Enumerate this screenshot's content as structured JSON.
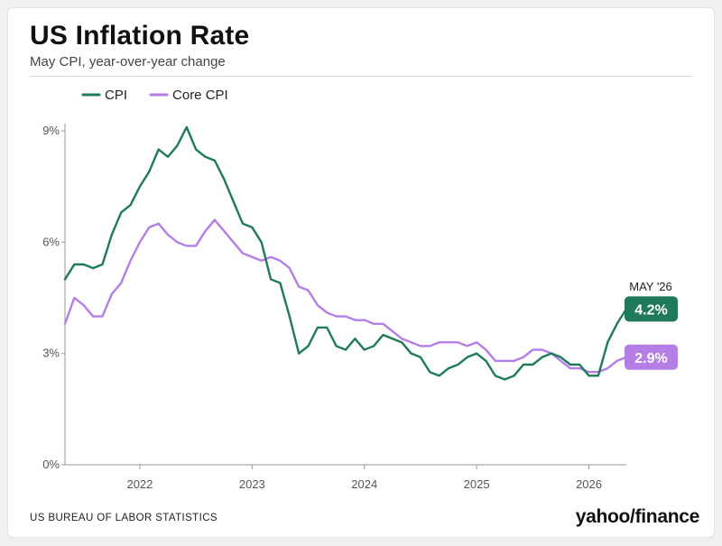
{
  "header": {
    "title": "US Inflation Rate",
    "subtitle": "May CPI, year-over-year change"
  },
  "footer": {
    "source": "US BUREAU OF LABOR STATISTICS",
    "brand": "yahoo/finance"
  },
  "colors": {
    "cpi": "#1f7a5a",
    "core_cpi": "#b57ee6",
    "axis": "#9a9a9a",
    "grid": "#dddddd"
  },
  "chart_data": {
    "type": "line",
    "title": "US Inflation Rate",
    "subtitle": "May CPI, year-over-year change",
    "xlabel": "",
    "ylabel": "",
    "y_unit": "%",
    "ylim": [
      0,
      9
    ],
    "yticks": [
      0,
      3,
      6,
      9
    ],
    "ytick_labels": [
      "0%",
      "3%",
      "6%",
      "9%"
    ],
    "xticks": [
      "2022",
      "2023",
      "2024",
      "2025",
      "2026"
    ],
    "xlim": [
      "2021-05",
      "2026-05"
    ],
    "grid": false,
    "legend_position": "top-left",
    "period_label": "MAY '26",
    "series": [
      {
        "name": "CPI",
        "color": "#1f7a5a",
        "end_label": "4.2%",
        "points": [
          [
            "2021-05",
            5.0
          ],
          [
            "2021-06",
            5.4
          ],
          [
            "2021-07",
            5.4
          ],
          [
            "2021-08",
            5.3
          ],
          [
            "2021-09",
            5.4
          ],
          [
            "2021-10",
            6.2
          ],
          [
            "2021-11",
            6.8
          ],
          [
            "2021-12",
            7.0
          ],
          [
            "2022-01",
            7.5
          ],
          [
            "2022-02",
            7.9
          ],
          [
            "2022-03",
            8.5
          ],
          [
            "2022-04",
            8.3
          ],
          [
            "2022-05",
            8.6
          ],
          [
            "2022-06",
            9.1
          ],
          [
            "2022-07",
            8.5
          ],
          [
            "2022-08",
            8.3
          ],
          [
            "2022-09",
            8.2
          ],
          [
            "2022-10",
            7.7
          ],
          [
            "2022-11",
            7.1
          ],
          [
            "2022-12",
            6.5
          ],
          [
            "2023-01",
            6.4
          ],
          [
            "2023-02",
            6.0
          ],
          [
            "2023-03",
            5.0
          ],
          [
            "2023-04",
            4.9
          ],
          [
            "2023-05",
            4.0
          ],
          [
            "2023-06",
            3.0
          ],
          [
            "2023-07",
            3.2
          ],
          [
            "2023-08",
            3.7
          ],
          [
            "2023-09",
            3.7
          ],
          [
            "2023-10",
            3.2
          ],
          [
            "2023-11",
            3.1
          ],
          [
            "2023-12",
            3.4
          ],
          [
            "2024-01",
            3.1
          ],
          [
            "2024-02",
            3.2
          ],
          [
            "2024-03",
            3.5
          ],
          [
            "2024-04",
            3.4
          ],
          [
            "2024-05",
            3.3
          ],
          [
            "2024-06",
            3.0
          ],
          [
            "2024-07",
            2.9
          ],
          [
            "2024-08",
            2.5
          ],
          [
            "2024-09",
            2.4
          ],
          [
            "2024-10",
            2.6
          ],
          [
            "2024-11",
            2.7
          ],
          [
            "2024-12",
            2.9
          ],
          [
            "2025-01",
            3.0
          ],
          [
            "2025-02",
            2.8
          ],
          [
            "2025-03",
            2.4
          ],
          [
            "2025-04",
            2.3
          ],
          [
            "2025-05",
            2.4
          ],
          [
            "2025-06",
            2.7
          ],
          [
            "2025-07",
            2.7
          ],
          [
            "2025-08",
            2.9
          ],
          [
            "2025-09",
            3.0
          ],
          [
            "2025-10",
            2.9
          ],
          [
            "2025-11",
            2.7
          ],
          [
            "2025-12",
            2.7
          ],
          [
            "2026-01",
            2.4
          ],
          [
            "2026-02",
            2.4
          ],
          [
            "2026-03",
            3.3
          ],
          [
            "2026-04",
            3.8
          ],
          [
            "2026-05",
            4.2
          ]
        ]
      },
      {
        "name": "Core CPI",
        "color": "#b57ee6",
        "end_label": "2.9%",
        "points": [
          [
            "2021-05",
            3.8
          ],
          [
            "2021-06",
            4.5
          ],
          [
            "2021-07",
            4.3
          ],
          [
            "2021-08",
            4.0
          ],
          [
            "2021-09",
            4.0
          ],
          [
            "2021-10",
            4.6
          ],
          [
            "2021-11",
            4.9
          ],
          [
            "2021-12",
            5.5
          ],
          [
            "2022-01",
            6.0
          ],
          [
            "2022-02",
            6.4
          ],
          [
            "2022-03",
            6.5
          ],
          [
            "2022-04",
            6.2
          ],
          [
            "2022-05",
            6.0
          ],
          [
            "2022-06",
            5.9
          ],
          [
            "2022-07",
            5.9
          ],
          [
            "2022-08",
            6.3
          ],
          [
            "2022-09",
            6.6
          ],
          [
            "2022-10",
            6.3
          ],
          [
            "2022-11",
            6.0
          ],
          [
            "2022-12",
            5.7
          ],
          [
            "2023-01",
            5.6
          ],
          [
            "2023-02",
            5.5
          ],
          [
            "2023-03",
            5.6
          ],
          [
            "2023-04",
            5.5
          ],
          [
            "2023-05",
            5.3
          ],
          [
            "2023-06",
            4.8
          ],
          [
            "2023-07",
            4.7
          ],
          [
            "2023-08",
            4.3
          ],
          [
            "2023-09",
            4.1
          ],
          [
            "2023-10",
            4.0
          ],
          [
            "2023-11",
            4.0
          ],
          [
            "2023-12",
            3.9
          ],
          [
            "2024-01",
            3.9
          ],
          [
            "2024-02",
            3.8
          ],
          [
            "2024-03",
            3.8
          ],
          [
            "2024-04",
            3.6
          ],
          [
            "2024-05",
            3.4
          ],
          [
            "2024-06",
            3.3
          ],
          [
            "2024-07",
            3.2
          ],
          [
            "2024-08",
            3.2
          ],
          [
            "2024-09",
            3.3
          ],
          [
            "2024-10",
            3.3
          ],
          [
            "2024-11",
            3.3
          ],
          [
            "2024-12",
            3.2
          ],
          [
            "2025-01",
            3.3
          ],
          [
            "2025-02",
            3.1
          ],
          [
            "2025-03",
            2.8
          ],
          [
            "2025-04",
            2.8
          ],
          [
            "2025-05",
            2.8
          ],
          [
            "2025-06",
            2.9
          ],
          [
            "2025-07",
            3.1
          ],
          [
            "2025-08",
            3.1
          ],
          [
            "2025-09",
            3.0
          ],
          [
            "2025-10",
            2.8
          ],
          [
            "2025-11",
            2.6
          ],
          [
            "2025-12",
            2.6
          ],
          [
            "2026-01",
            2.5
          ],
          [
            "2026-02",
            2.5
          ],
          [
            "2026-03",
            2.6
          ],
          [
            "2026-04",
            2.8
          ],
          [
            "2026-05",
            2.9
          ]
        ]
      }
    ]
  }
}
